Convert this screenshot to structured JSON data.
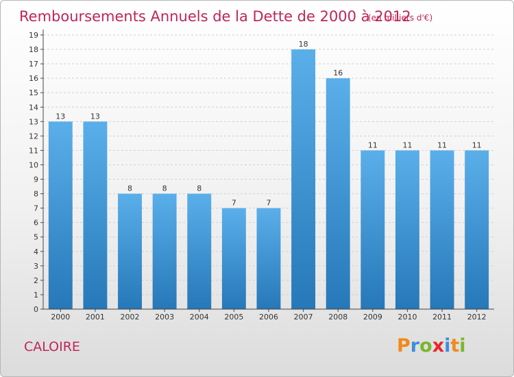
{
  "header": {
    "title": "Remboursements Annuels de la Dette de 2000 à 2012",
    "unit": "(en milliers d'€)"
  },
  "footer": {
    "commune": "CALOIRE",
    "logo_letters": [
      "P",
      "r",
      "o",
      "x",
      "i",
      "t",
      "i"
    ],
    "logo_colors": [
      "#f08a1c",
      "#3a8fd9",
      "#78b72a",
      "#e8262a",
      "#3a8fd9",
      "#f08a1c",
      "#78b72a"
    ]
  },
  "colors": {
    "bar_top": "#5aafea",
    "bar_bottom": "#2678b8",
    "axis": "#444444",
    "grid": "#cfcfcf",
    "title": "#c0245a"
  },
  "chart_data": {
    "type": "bar",
    "categories": [
      "2000",
      "2001",
      "2002",
      "2003",
      "2004",
      "2005",
      "2006",
      "2007",
      "2008",
      "2009",
      "2010",
      "2011",
      "2012"
    ],
    "values": [
      13,
      13,
      8,
      8,
      8,
      7,
      7,
      18,
      16,
      11,
      11,
      11,
      11
    ],
    "ylim": [
      0,
      19
    ],
    "yticks": [
      0,
      1,
      2,
      3,
      4,
      5,
      6,
      7,
      8,
      9,
      10,
      11,
      12,
      13,
      14,
      15,
      16,
      17,
      18,
      19
    ],
    "grid": true,
    "data_labels": true
  }
}
